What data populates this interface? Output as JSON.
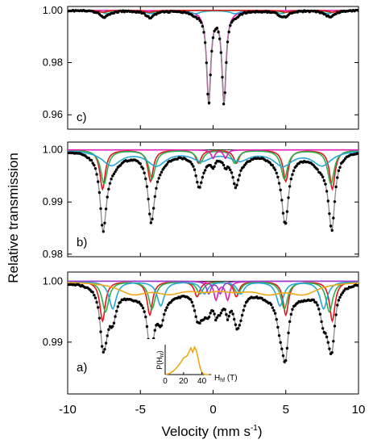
{
  "figure": {
    "ylabel": "Relative transmission",
    "xlabel": "Velocity (mm s",
    "xlabel_sup": "-1",
    "xlabel_end": ")"
  },
  "colors": {
    "experimental": "#000000",
    "fit_total": "#8a8a8a",
    "red": "#e8141b",
    "green": "#2bb24c",
    "cyan": "#27a7d8",
    "magenta": "#e020b8",
    "orange": "#f0a818",
    "purple": "#9a3fc9"
  },
  "chart_data": [
    {
      "type": "line",
      "panel": "c)",
      "xlim": [
        -10,
        10
      ],
      "ylim": [
        0.9545,
        1.0015
      ],
      "yticks": [
        0.96,
        0.98,
        1.0
      ],
      "ytick_labels": [
        "0.96",
        "0.98",
        "1.00"
      ],
      "components": [
        {
          "color": "magenta",
          "lines": [
            {
              "v": -0.3,
              "d": 0.035,
              "w": 0.34
            },
            {
              "v": 0.75,
              "d": 0.035,
              "w": 0.34
            }
          ]
        },
        {
          "color": "cyan",
          "lines": [
            {
              "v": -7.3,
              "d": 0.0012,
              "w": 0.8
            },
            {
              "v": -4.3,
              "d": 0.0012,
              "w": 0.8
            },
            {
              "v": -1.2,
              "d": 0.0012,
              "w": 0.8
            },
            {
              "v": 1.5,
              "d": 0.0012,
              "w": 0.8
            },
            {
              "v": 4.7,
              "d": 0.0012,
              "w": 0.8
            },
            {
              "v": 7.9,
              "d": 0.0012,
              "w": 0.8
            }
          ]
        },
        {
          "color": "green",
          "lines": [
            {
              "v": -7.5,
              "d": 0.0008,
              "w": 0.7
            },
            {
              "v": -4.3,
              "d": 0.0008,
              "w": 0.7
            },
            {
              "v": 4.9,
              "d": 0.0008,
              "w": 0.7
            },
            {
              "v": 8.1,
              "d": 0.0008,
              "w": 0.7
            }
          ]
        },
        {
          "color": "red",
          "lines": [
            {
              "v": -7.6,
              "d": 0.0007,
              "w": 0.6
            },
            {
              "v": -4.4,
              "d": 0.0007,
              "w": 0.6
            },
            {
              "v": 5.0,
              "d": 0.0007,
              "w": 0.6
            },
            {
              "v": 8.2,
              "d": 0.0007,
              "w": 0.6
            }
          ]
        }
      ]
    },
    {
      "type": "line",
      "panel": "b)",
      "xlim": [
        -10,
        10
      ],
      "ylim": [
        0.9795,
        1.0015
      ],
      "yticks": [
        0.98,
        0.99,
        1.0
      ],
      "ytick_labels": [
        "0.98",
        "0.99",
        "1.00"
      ],
      "components": [
        {
          "color": "red",
          "lines": [
            {
              "v": -7.6,
              "d": 0.0075,
              "w": 0.45
            },
            {
              "v": -4.3,
              "d": 0.006,
              "w": 0.45
            },
            {
              "v": -1.0,
              "d": 0.0025,
              "w": 0.45
            },
            {
              "v": 1.6,
              "d": 0.0025,
              "w": 0.45
            },
            {
              "v": 5.0,
              "d": 0.006,
              "w": 0.45
            },
            {
              "v": 8.2,
              "d": 0.0075,
              "w": 0.45
            }
          ]
        },
        {
          "color": "green",
          "lines": [
            {
              "v": -7.5,
              "d": 0.0065,
              "w": 0.55
            },
            {
              "v": -4.2,
              "d": 0.0055,
              "w": 0.55
            },
            {
              "v": -0.9,
              "d": 0.0025,
              "w": 0.55
            },
            {
              "v": 1.5,
              "d": 0.0025,
              "w": 0.55
            },
            {
              "v": 4.9,
              "d": 0.0055,
              "w": 0.55
            },
            {
              "v": 8.1,
              "d": 0.0065,
              "w": 0.55
            }
          ]
        },
        {
          "color": "cyan",
          "lines": [
            {
              "v": -7.0,
              "d": 0.0028,
              "w": 1.6
            },
            {
              "v": -3.9,
              "d": 0.0028,
              "w": 1.6
            },
            {
              "v": -0.8,
              "d": 0.0018,
              "w": 1.6
            },
            {
              "v": 1.8,
              "d": 0.0018,
              "w": 1.6
            },
            {
              "v": 4.8,
              "d": 0.0028,
              "w": 1.6
            },
            {
              "v": 7.5,
              "d": 0.0028,
              "w": 1.6
            }
          ]
        },
        {
          "color": "magenta",
          "lines": [
            {
              "v": 0.0,
              "d": 0.0016,
              "w": 0.3
            },
            {
              "v": 0.85,
              "d": 0.0016,
              "w": 0.3
            }
          ]
        }
      ]
    },
    {
      "type": "line",
      "panel": "a)",
      "xlim": [
        -10,
        10
      ],
      "ylim": [
        0.9815,
        1.0015
      ],
      "yticks": [
        0.99,
        1.0
      ],
      "ytick_labels": [
        "0.99",
        "1.00"
      ],
      "components": [
        {
          "color": "red",
          "lines": [
            {
              "v": -7.6,
              "d": 0.0065,
              "w": 0.45
            },
            {
              "v": -4.35,
              "d": 0.0055,
              "w": 0.45
            },
            {
              "v": -1.1,
              "d": 0.0025,
              "w": 0.45
            },
            {
              "v": 1.6,
              "d": 0.0025,
              "w": 0.45
            },
            {
              "v": 5.0,
              "d": 0.0055,
              "w": 0.45
            },
            {
              "v": 8.2,
              "d": 0.0065,
              "w": 0.45
            }
          ]
        },
        {
          "color": "green",
          "lines": [
            {
              "v": -7.4,
              "d": 0.005,
              "w": 0.55
            },
            {
              "v": -4.2,
              "d": 0.0045,
              "w": 0.55
            },
            {
              "v": -0.9,
              "d": 0.002,
              "w": 0.55
            },
            {
              "v": 1.7,
              "d": 0.002,
              "w": 0.55
            },
            {
              "v": 4.9,
              "d": 0.0045,
              "w": 0.55
            },
            {
              "v": 8.0,
              "d": 0.005,
              "w": 0.55
            }
          ]
        },
        {
          "color": "cyan",
          "lines": [
            {
              "v": -6.9,
              "d": 0.0045,
              "w": 0.6
            },
            {
              "v": -3.6,
              "d": 0.004,
              "w": 0.6
            },
            {
              "v": -0.6,
              "d": 0.002,
              "w": 0.6
            },
            {
              "v": 1.9,
              "d": 0.002,
              "w": 0.6
            },
            {
              "v": 4.6,
              "d": 0.004,
              "w": 0.6
            },
            {
              "v": 7.6,
              "d": 0.0045,
              "w": 0.6
            }
          ]
        },
        {
          "color": "magenta",
          "lines": [
            {
              "v": 0.2,
              "d": 0.003,
              "w": 0.35
            },
            {
              "v": 1.0,
              "d": 0.003,
              "w": 0.35
            }
          ]
        },
        {
          "color": "purple",
          "lines": [
            {
              "v": -0.3,
              "d": 0.002,
              "w": 0.35
            },
            {
              "v": 0.5,
              "d": 0.002,
              "w": 0.35
            }
          ]
        },
        {
          "color": "orange",
          "lines": [
            {
              "v": -5.5,
              "d": 0.0018,
              "w": 2.5
            },
            {
              "v": -3.0,
              "d": 0.0015,
              "w": 2.5
            },
            {
              "v": -0.6,
              "d": 0.001,
              "w": 2.5
            },
            {
              "v": 1.5,
              "d": 0.001,
              "w": 2.5
            },
            {
              "v": 3.8,
              "d": 0.0015,
              "w": 2.5
            },
            {
              "v": 6.2,
              "d": 0.0018,
              "w": 2.5
            }
          ]
        }
      ],
      "inset": {
        "type": "line",
        "ylabel": "P(H",
        "ylabel_sub": "hf",
        "ylabel_end": ")",
        "xlabel": "H",
        "xlabel_sub": "hf",
        "xlabel_end": " (T)",
        "xlim": [
          0,
          50
        ],
        "ylim": [
          0,
          1.05
        ],
        "xticks": [
          0,
          20,
          40
        ],
        "xtick_labels": [
          "0",
          "20",
          "40"
        ],
        "x": [
          0,
          4,
          8,
          12,
          16,
          20,
          24,
          28,
          30,
          32,
          34,
          36,
          38,
          40,
          42,
          44,
          46,
          48
        ],
        "y": [
          0.0,
          0.03,
          0.1,
          0.22,
          0.38,
          0.58,
          0.66,
          0.94,
          0.78,
          0.97,
          0.84,
          0.55,
          0.25,
          0.08,
          0.02,
          0.0,
          0.0,
          0.0
        ]
      }
    }
  ],
  "xaxis": {
    "xlim": [
      -10,
      10
    ],
    "ticks": [
      -10,
      -5,
      0,
      5,
      10
    ],
    "tick_labels": [
      "-10",
      "-5",
      "0",
      "5",
      "10"
    ]
  }
}
